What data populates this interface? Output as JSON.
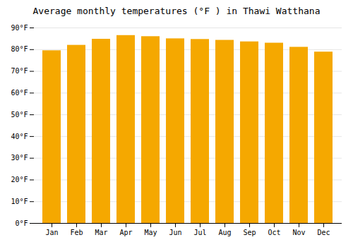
{
  "chart_data": {
    "type": "bar",
    "title": "Average monthly temperatures (°F ) in Thawi Watthana",
    "categories": [
      "Jan",
      "Feb",
      "Mar",
      "Apr",
      "May",
      "Jun",
      "Jul",
      "Aug",
      "Sep",
      "Oct",
      "Nov",
      "Dec"
    ],
    "values": [
      79.5,
      82.0,
      84.8,
      86.5,
      86.0,
      85.0,
      84.7,
      84.3,
      83.6,
      83.0,
      81.1,
      78.9
    ],
    "color": "#F5A800",
    "ylim": [
      0,
      90
    ],
    "yticks": [
      {
        "value": 0,
        "label": "0°F"
      },
      {
        "value": 10,
        "label": "10°F"
      },
      {
        "value": 20,
        "label": "20°F"
      },
      {
        "value": 30,
        "label": "30°F"
      },
      {
        "value": 40,
        "label": "40°F"
      },
      {
        "value": 50,
        "label": "50°F"
      },
      {
        "value": 60,
        "label": "60°F"
      },
      {
        "value": 70,
        "label": "70°F"
      },
      {
        "value": 80,
        "label": "80°F"
      },
      {
        "value": 90,
        "label": "90°F"
      }
    ],
    "grid": true
  }
}
